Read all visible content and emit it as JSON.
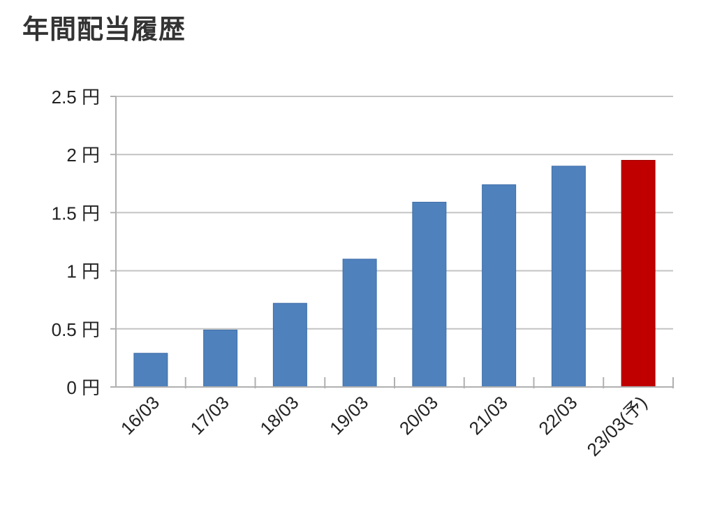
{
  "chart_data": {
    "type": "bar",
    "title": "年間配当履歴",
    "xlabel": "",
    "ylabel": "",
    "categories": [
      "16/03",
      "17/03",
      "18/03",
      "19/03",
      "20/03",
      "21/03",
      "22/03",
      "23/03(予)"
    ],
    "values": [
      0.29,
      0.49,
      0.72,
      1.1,
      1.59,
      1.74,
      1.9,
      1.95
    ],
    "bar_colors": [
      "#4f81bd",
      "#4f81bd",
      "#4f81bd",
      "#4f81bd",
      "#4f81bd",
      "#4f81bd",
      "#4f81bd",
      "#c00000"
    ],
    "ylim": [
      0,
      2.5
    ],
    "yticks": [
      0,
      0.5,
      1,
      1.5,
      2,
      2.5
    ],
    "ytick_labels": [
      "0 円",
      "0.5 円",
      "1 円",
      "1.5 円",
      "2 円",
      "2.5 円"
    ],
    "grid": true,
    "legend": "none"
  }
}
